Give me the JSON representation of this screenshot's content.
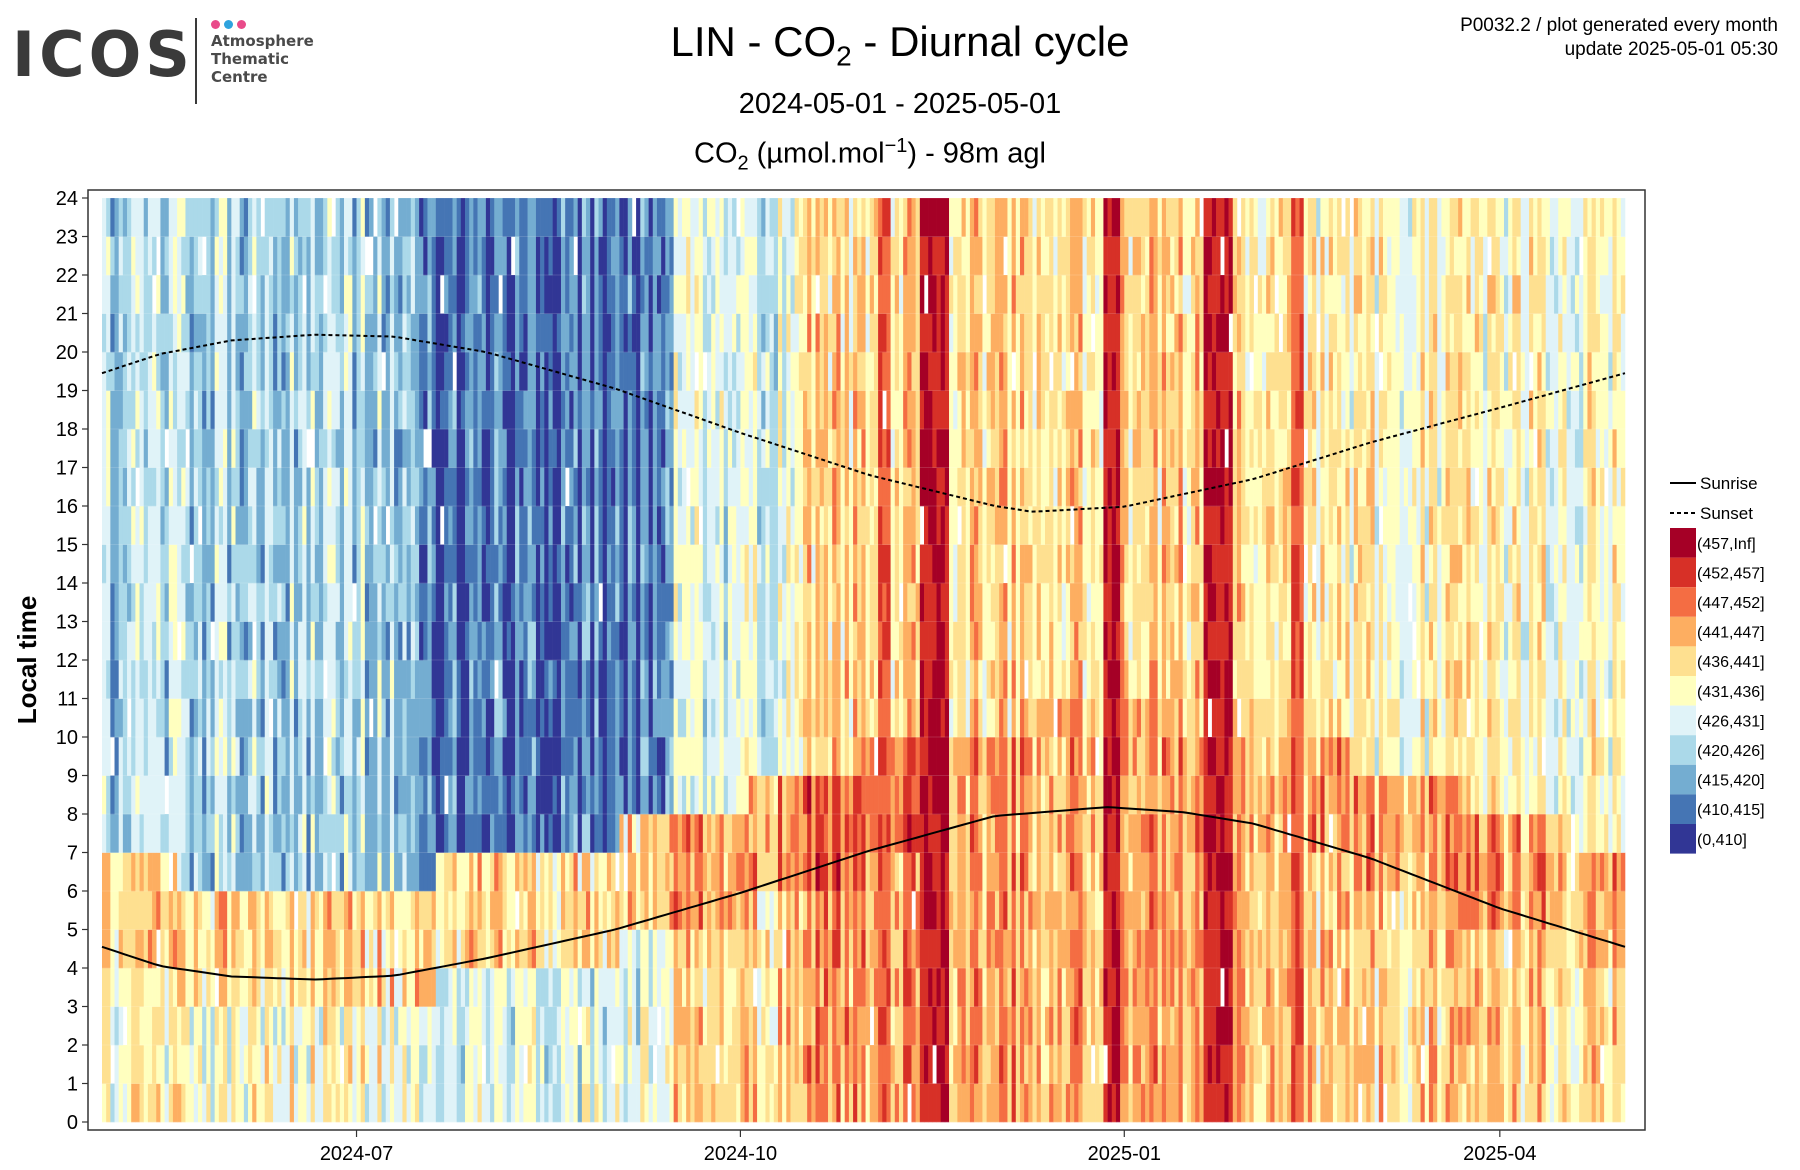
{
  "logo": {
    "wordmark": "ICOS",
    "lines": [
      "Atmosphere",
      "Thematic",
      "Centre"
    ],
    "dot_colors": [
      "#e94b8a",
      "#2ea3de",
      "#e94b8a"
    ]
  },
  "header": {
    "title_prefix": "LIN - CO",
    "title_sub": "2",
    "title_suffix": " - Diurnal cycle",
    "subtitle": "2024-05-01 - 2025-05-01",
    "units_prefix": "CO",
    "units_sub": "2",
    "units_mid": " (µmol.mol",
    "units_sup": "−1",
    "units_suffix": ") - 98m agl",
    "corner_line1": "P0032.2 / plot generated every month",
    "corner_line2": "update  2025-05-01 05:30"
  },
  "chart_data": {
    "type": "heatmap",
    "title": "LIN - CO2 - Diurnal cycle",
    "subtitle": "2024-05-01 - 2025-05-01",
    "value_label": "CO2 (µmol.mol−1) - 98m agl",
    "xlabel": "",
    "ylabel": "Local time",
    "x_range": [
      "2024-05-01",
      "2025-05-01"
    ],
    "x_ticks": [
      "2024-07",
      "2024-10",
      "2025-01",
      "2025-04"
    ],
    "y_range": [
      0,
      24
    ],
    "y_ticks": [
      0,
      1,
      2,
      3,
      4,
      5,
      6,
      7,
      8,
      9,
      10,
      11,
      12,
      13,
      14,
      15,
      16,
      17,
      18,
      19,
      20,
      21,
      22,
      23,
      24
    ],
    "grid": true,
    "legend_position": "right",
    "bins": [
      {
        "label": "(457,Inf]",
        "color": "#a50026"
      },
      {
        "label": "(452,457]",
        "color": "#d73027"
      },
      {
        "label": "(447,452]",
        "color": "#f46d43"
      },
      {
        "label": "(441,447]",
        "color": "#fdae61"
      },
      {
        "label": "(436,441]",
        "color": "#fee090"
      },
      {
        "label": "(431,436]",
        "color": "#ffffbf"
      },
      {
        "label": "(426,431]",
        "color": "#e0f3f8"
      },
      {
        "label": "(420,426]",
        "color": "#abd9e9"
      },
      {
        "label": "(415,420]",
        "color": "#74add1"
      },
      {
        "label": "(410,415]",
        "color": "#4575b4"
      },
      {
        "label": "(0,410]",
        "color": "#313695"
      }
    ],
    "lines": [
      {
        "name": "Sunrise",
        "style": "solid",
        "points": [
          [
            "2024-05-01",
            4.55
          ],
          [
            "2024-05-15",
            4.05
          ],
          [
            "2024-06-01",
            3.78
          ],
          [
            "2024-06-21",
            3.7
          ],
          [
            "2024-07-10",
            3.8
          ],
          [
            "2024-08-01",
            4.25
          ],
          [
            "2024-09-01",
            5.0
          ],
          [
            "2024-10-01",
            5.95
          ],
          [
            "2024-11-01",
            7.05
          ],
          [
            "2024-12-01",
            7.95
          ],
          [
            "2024-12-28",
            8.18
          ],
          [
            "2025-01-15",
            8.05
          ],
          [
            "2025-02-01",
            7.75
          ],
          [
            "2025-03-01",
            6.85
          ],
          [
            "2025-04-01",
            5.55
          ],
          [
            "2025-05-01",
            4.55
          ]
        ]
      },
      {
        "name": "Sunset",
        "style": "dashed",
        "points": [
          [
            "2024-05-01",
            19.45
          ],
          [
            "2024-05-15",
            19.95
          ],
          [
            "2024-06-01",
            20.3
          ],
          [
            "2024-06-21",
            20.45
          ],
          [
            "2024-07-10",
            20.4
          ],
          [
            "2024-08-01",
            20.0
          ],
          [
            "2024-09-01",
            19.05
          ],
          [
            "2024-10-01",
            17.9
          ],
          [
            "2024-11-01",
            16.8
          ],
          [
            "2024-12-01",
            16.0
          ],
          [
            "2024-12-10",
            15.85
          ],
          [
            "2025-01-01",
            15.98
          ],
          [
            "2025-02-01",
            16.7
          ],
          [
            "2025-03-01",
            17.65
          ],
          [
            "2025-04-01",
            18.55
          ],
          [
            "2025-05-01",
            19.45
          ]
        ]
      }
    ],
    "period_profiles": [
      {
        "start": "2024-05-01",
        "end": "2024-07-15",
        "night_bin": 5,
        "morning_bin": 4,
        "day_bin": 7,
        "evening_bin": 7
      },
      {
        "start": "2024-07-15",
        "end": "2024-09-15",
        "night_bin": 6,
        "morning_bin": 4,
        "day_bin": 9,
        "evening_bin": 9
      },
      {
        "start": "2024-09-15",
        "end": "2024-10-15",
        "night_bin": 4,
        "morning_bin": 3,
        "day_bin": 6,
        "evening_bin": 6
      },
      {
        "start": "2024-10-15",
        "end": "2024-11-20",
        "night_bin": 3,
        "morning_bin": 2,
        "day_bin": 4,
        "evening_bin": 4
      },
      {
        "start": "2024-11-20",
        "end": "2025-02-15",
        "night_bin": 3,
        "morning_bin": 3,
        "day_bin": 4,
        "evening_bin": 4
      },
      {
        "start": "2025-02-15",
        "end": "2025-05-01",
        "night_bin": 4,
        "morning_bin": 3,
        "day_bin": 5,
        "evening_bin": 5
      }
    ],
    "high_co2_episodes": [
      {
        "start": "2024-11-13",
        "end": "2024-11-20",
        "bin": 0
      },
      {
        "start": "2024-12-27",
        "end": "2024-12-31",
        "bin": 0
      },
      {
        "start": "2025-01-20",
        "end": "2025-01-27",
        "bin": 0
      },
      {
        "start": "2024-11-03",
        "end": "2024-11-06",
        "bin": 1
      },
      {
        "start": "2025-02-10",
        "end": "2025-02-13",
        "bin": 1
      }
    ]
  }
}
